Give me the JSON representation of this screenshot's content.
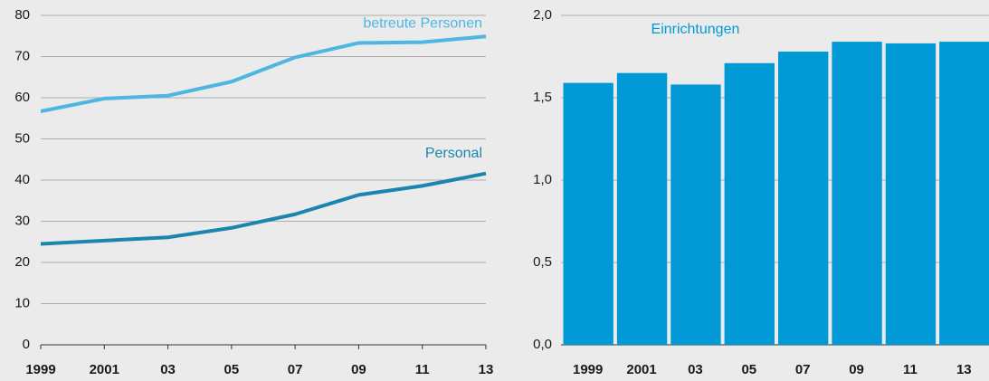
{
  "chart_data": [
    {
      "type": "line",
      "categories": [
        "1999",
        "2001",
        "03",
        "05",
        "07",
        "09",
        "11",
        "13"
      ],
      "series": [
        {
          "name": "betreute Personen",
          "color": "#4db6e2",
          "values": [
            56.7,
            59.8,
            60.5,
            63.9,
            69.8,
            73.3,
            73.5,
            74.9
          ]
        },
        {
          "name": "Personal",
          "color": "#1b86ad",
          "values": [
            24.5,
            25.3,
            26.1,
            28.4,
            31.7,
            36.4,
            38.6,
            41.6
          ]
        }
      ],
      "ylim": [
        0,
        80
      ],
      "yticks": [
        0,
        10,
        20,
        30,
        40,
        50,
        60,
        70,
        80
      ],
      "grid": true
    },
    {
      "type": "bar",
      "categories": [
        "1999",
        "2001",
        "03",
        "05",
        "07",
        "09",
        "11",
        "13"
      ],
      "series": [
        {
          "name": "Einrichtungen",
          "color": "#0099d6",
          "values": [
            1.59,
            1.65,
            1.58,
            1.71,
            1.78,
            1.84,
            1.83,
            1.84
          ]
        }
      ],
      "ylim": [
        0,
        2.0
      ],
      "yticks": [
        {
          "value": 0,
          "label": "0,0"
        },
        {
          "value": 0.5,
          "label": "0,5"
        },
        {
          "value": 1.0,
          "label": "1,0"
        },
        {
          "value": 1.5,
          "label": "1,5"
        },
        {
          "value": 2.0,
          "label": "2,0"
        }
      ],
      "grid": true
    }
  ]
}
